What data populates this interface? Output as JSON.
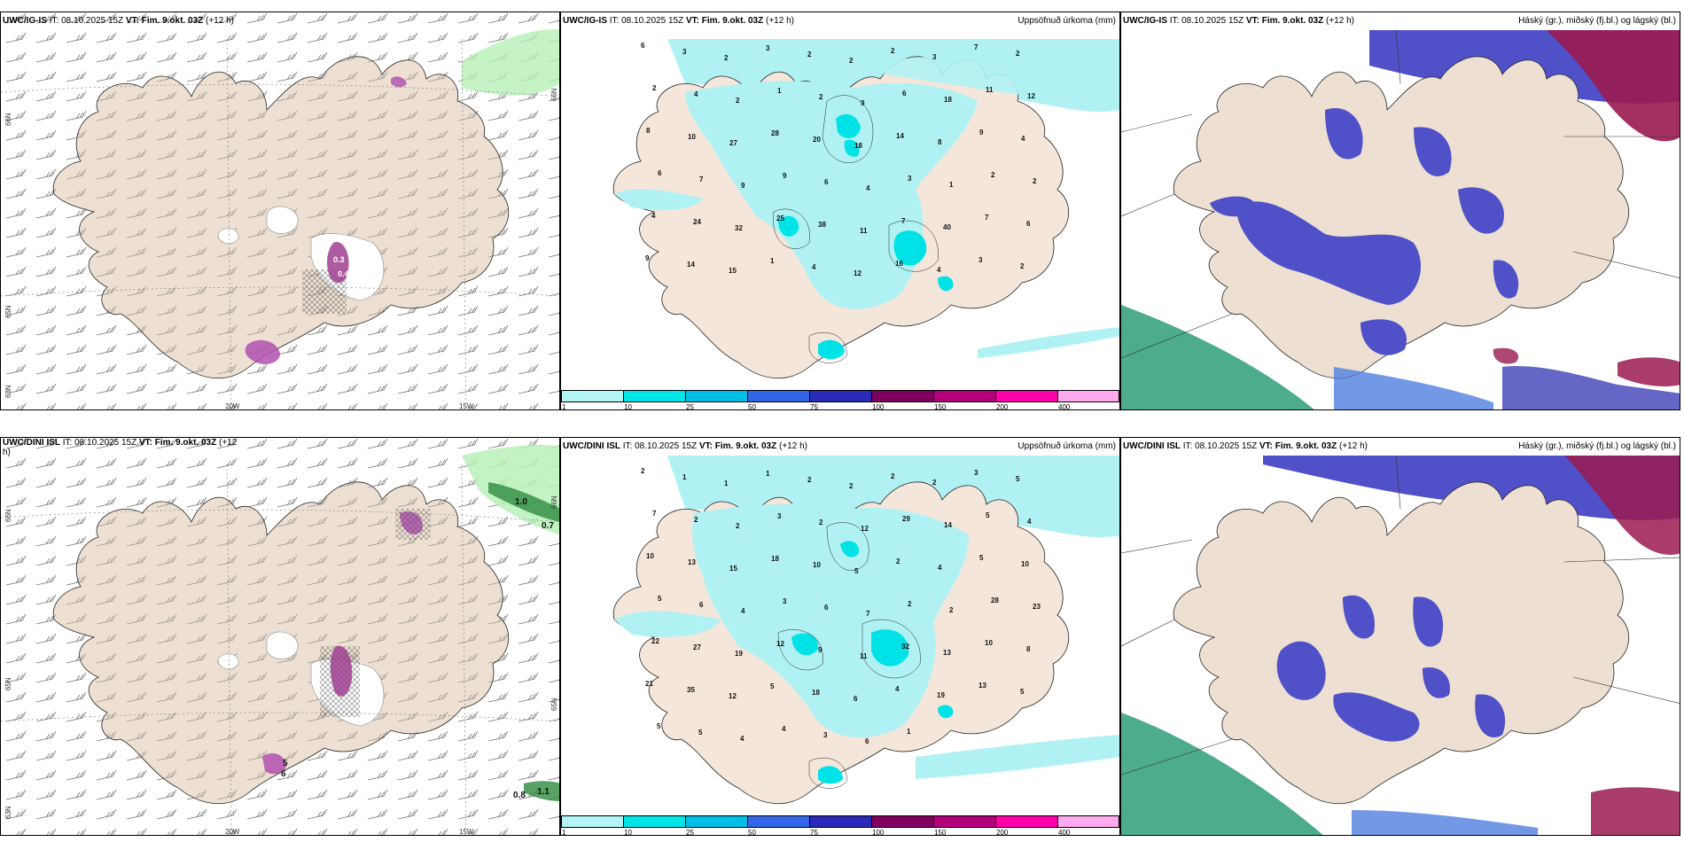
{
  "panels": [
    {
      "id": "tl",
      "model": "UWC/IG-IS",
      "it": "IT: 08.10.2025 15Z",
      "vt": "VT: Fim. 9.okt. 03Z",
      "lead": "(+12 h)",
      "right": "",
      "type": "wind",
      "lat_labels": [
        "66N",
        "65N",
        "63N"
      ],
      "lon_labels": [
        "20W",
        "15W"
      ],
      "values": [
        "0.3",
        "0.4"
      ]
    },
    {
      "id": "tm",
      "model": "UWC/IG-IS",
      "it": "IT: 08.10.2025 15Z",
      "vt": "VT: Fim. 9.okt. 03Z",
      "lead": "(+12 h)",
      "right": "Uppsöfnuð úrkoma (mm)",
      "type": "precip",
      "values": [
        "6",
        "3",
        "2",
        "3",
        "2",
        "2",
        "2",
        "3",
        "7",
        "2",
        "2",
        "4",
        "2",
        "1",
        "2",
        "9",
        "6",
        "18",
        "11",
        "12",
        "8",
        "10",
        "27",
        "28",
        "20",
        "18",
        "14",
        "8",
        "9",
        "4",
        "6",
        "7",
        "9",
        "9",
        "6",
        "4",
        "3",
        "1",
        "2",
        "2",
        "4",
        "24",
        "32",
        "25",
        "38",
        "11",
        "7",
        "40",
        "7",
        "6",
        "9",
        "14",
        "15",
        "1",
        "4",
        "12",
        "16",
        "4",
        "3",
        "2"
      ]
    },
    {
      "id": "tr",
      "model": "UWC/IG-IS",
      "it": "IT: 08.10.2025 15Z",
      "vt": "VT: Fim. 9.okt. 03Z",
      "lead": "(+12 h)",
      "right": "Háský (gr.), miðský (fj.bl.) og lágský (bl.)",
      "type": "cloud"
    },
    {
      "id": "bl",
      "model": "UWC/DINI ISL",
      "it": "IT: 08.10.2025 15Z",
      "vt": "VT: Fim. 9.okt. 03Z",
      "lead": "(+12",
      "extra_line": "h)",
      "right": "",
      "type": "wind",
      "lat_labels": [
        "66N",
        "65N",
        "63N"
      ],
      "lon_labels": [
        "20W",
        "15W"
      ],
      "values": [
        "1.0",
        "0.7",
        "1.1",
        "0.8",
        "5",
        "6",
        "6"
      ]
    },
    {
      "id": "bm",
      "model": "UWC/DINI ISL",
      "it": "IT: 08.10.2025 15Z",
      "vt": "VT: Fim. 9.okt. 03Z",
      "lead": "(+12 h)",
      "right": "Uppsöfnuð úrkoma (mm)",
      "type": "precip",
      "values": [
        "2",
        "1",
        "1",
        "1",
        "2",
        "2",
        "2",
        "2",
        "3",
        "5",
        "7",
        "2",
        "2",
        "3",
        "2",
        "12",
        "29",
        "14",
        "5",
        "4",
        "10",
        "13",
        "15",
        "18",
        "10",
        "5",
        "2",
        "4",
        "5",
        "10",
        "5",
        "6",
        "4",
        "3",
        "6",
        "7",
        "2",
        "2",
        "28",
        "23",
        "22",
        "27",
        "19",
        "12",
        "9",
        "11",
        "32",
        "13",
        "10",
        "8",
        "21",
        "35",
        "12",
        "5",
        "18",
        "6",
        "4",
        "19",
        "13",
        "5",
        "5",
        "5",
        "4",
        "4",
        "3",
        "6",
        "1"
      ]
    },
    {
      "id": "br",
      "model": "UWC/DINI ISL",
      "it": "IT: 08.10.2025 15Z",
      "vt": "VT: Fim. 9.okt. 03Z",
      "lead": "(+12 h)",
      "right": "Háský (gr.), miðský (fj.bl.) og lágský (bl.)",
      "type": "cloud"
    }
  ],
  "colorbar": {
    "ticks": [
      "1",
      "10",
      "25",
      "50",
      "75",
      "100",
      "150",
      "200",
      "400"
    ],
    "colors": [
      "#b3f5f5",
      "#00e5e5",
      "#00bfe6",
      "#3366e6",
      "#2a2ab8",
      "#800060",
      "#b3007a",
      "#ff00aa",
      "#ffaaee"
    ]
  },
  "colors": {
    "land": "#ede0d2",
    "water": "#ffffff",
    "precip_light": "#b0f2f4",
    "precip_mid": "#00e3e6",
    "cloud_mid": "#5050c8",
    "cloud_low": "#3a7ee0",
    "cloud_high": "#2e9e7a",
    "conv": "#a04090"
  }
}
